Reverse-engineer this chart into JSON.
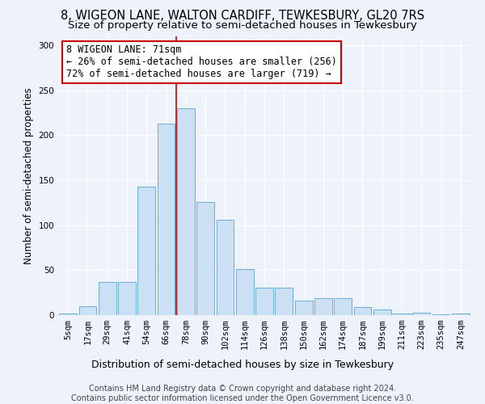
{
  "title": "8, WIGEON LANE, WALTON CARDIFF, TEWKESBURY, GL20 7RS",
  "subtitle": "Size of property relative to semi-detached houses in Tewkesbury",
  "xlabel": "Distribution of semi-detached houses by size in Tewkesbury",
  "ylabel": "Number of semi-detached properties",
  "categories": [
    "5sqm",
    "17sqm",
    "29sqm",
    "41sqm",
    "54sqm",
    "66sqm",
    "78sqm",
    "90sqm",
    "102sqm",
    "114sqm",
    "126sqm",
    "138sqm",
    "150sqm",
    "162sqm",
    "174sqm",
    "187sqm",
    "199sqm",
    "211sqm",
    "223sqm",
    "235sqm",
    "247sqm"
  ],
  "values": [
    2,
    10,
    37,
    37,
    143,
    213,
    230,
    126,
    106,
    51,
    31,
    31,
    16,
    19,
    19,
    9,
    6,
    2,
    3,
    1,
    2
  ],
  "bar_color": "#cce0f5",
  "bar_edge_color": "#6aaed6",
  "annotation_text": "8 WIGEON LANE: 71sqm\n← 26% of semi-detached houses are smaller (256)\n72% of semi-detached houses are larger (719) →",
  "annotation_box_color": "#ffffff",
  "annotation_box_edge_color": "#cc0000",
  "vline_x": 5.5,
  "vline_color": "#cc0000",
  "ylim": [
    0,
    310
  ],
  "yticks": [
    0,
    50,
    100,
    150,
    200,
    250,
    300
  ],
  "background_color": "#eef2fb",
  "grid_color": "#ffffff",
  "footer_text": "Contains HM Land Registry data © Crown copyright and database right 2024.\nContains public sector information licensed under the Open Government Licence v3.0.",
  "title_fontsize": 10.5,
  "subtitle_fontsize": 9.5,
  "xlabel_fontsize": 9,
  "ylabel_fontsize": 8.5,
  "tick_fontsize": 7.5,
  "annotation_fontsize": 8.5,
  "footer_fontsize": 7
}
